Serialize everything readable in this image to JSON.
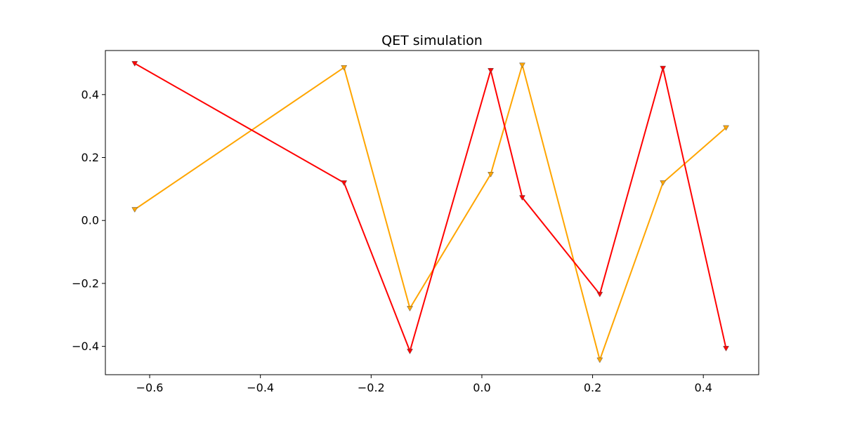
{
  "chart_data": {
    "type": "line",
    "title": "QET simulation",
    "xlabel": "",
    "ylabel": "",
    "xlim": [
      -0.68,
      0.5
    ],
    "ylim": [
      -0.49,
      0.54
    ],
    "x_ticks": [
      -0.6,
      -0.4,
      -0.2,
      0.0,
      0.2,
      0.4
    ],
    "x_tick_labels": [
      "−0.6",
      "−0.4",
      "−0.2",
      "0.0",
      "0.2",
      "0.4"
    ],
    "y_ticks": [
      -0.4,
      -0.2,
      0.0,
      0.2,
      0.4
    ],
    "y_tick_labels": [
      "−0.4",
      "−0.2",
      "0.0",
      "0.2",
      "0.4"
    ],
    "grid": false,
    "series": [
      {
        "color": "#ff0000",
        "marker": "triangle-down",
        "x": [
          -0.627,
          -0.249,
          -0.13,
          0.016,
          0.073,
          0.213,
          0.327,
          0.441
        ],
        "y": [
          0.499,
          0.12,
          -0.415,
          0.477,
          0.073,
          -0.234,
          0.484,
          -0.406
        ]
      },
      {
        "color": "#ffa500",
        "marker": "triangle-down",
        "x": [
          -0.627,
          -0.249,
          -0.13,
          0.016,
          0.073,
          0.213,
          0.327,
          0.441
        ],
        "y": [
          0.035,
          0.486,
          -0.279,
          0.147,
          0.494,
          -0.443,
          0.12,
          0.295
        ]
      }
    ]
  }
}
